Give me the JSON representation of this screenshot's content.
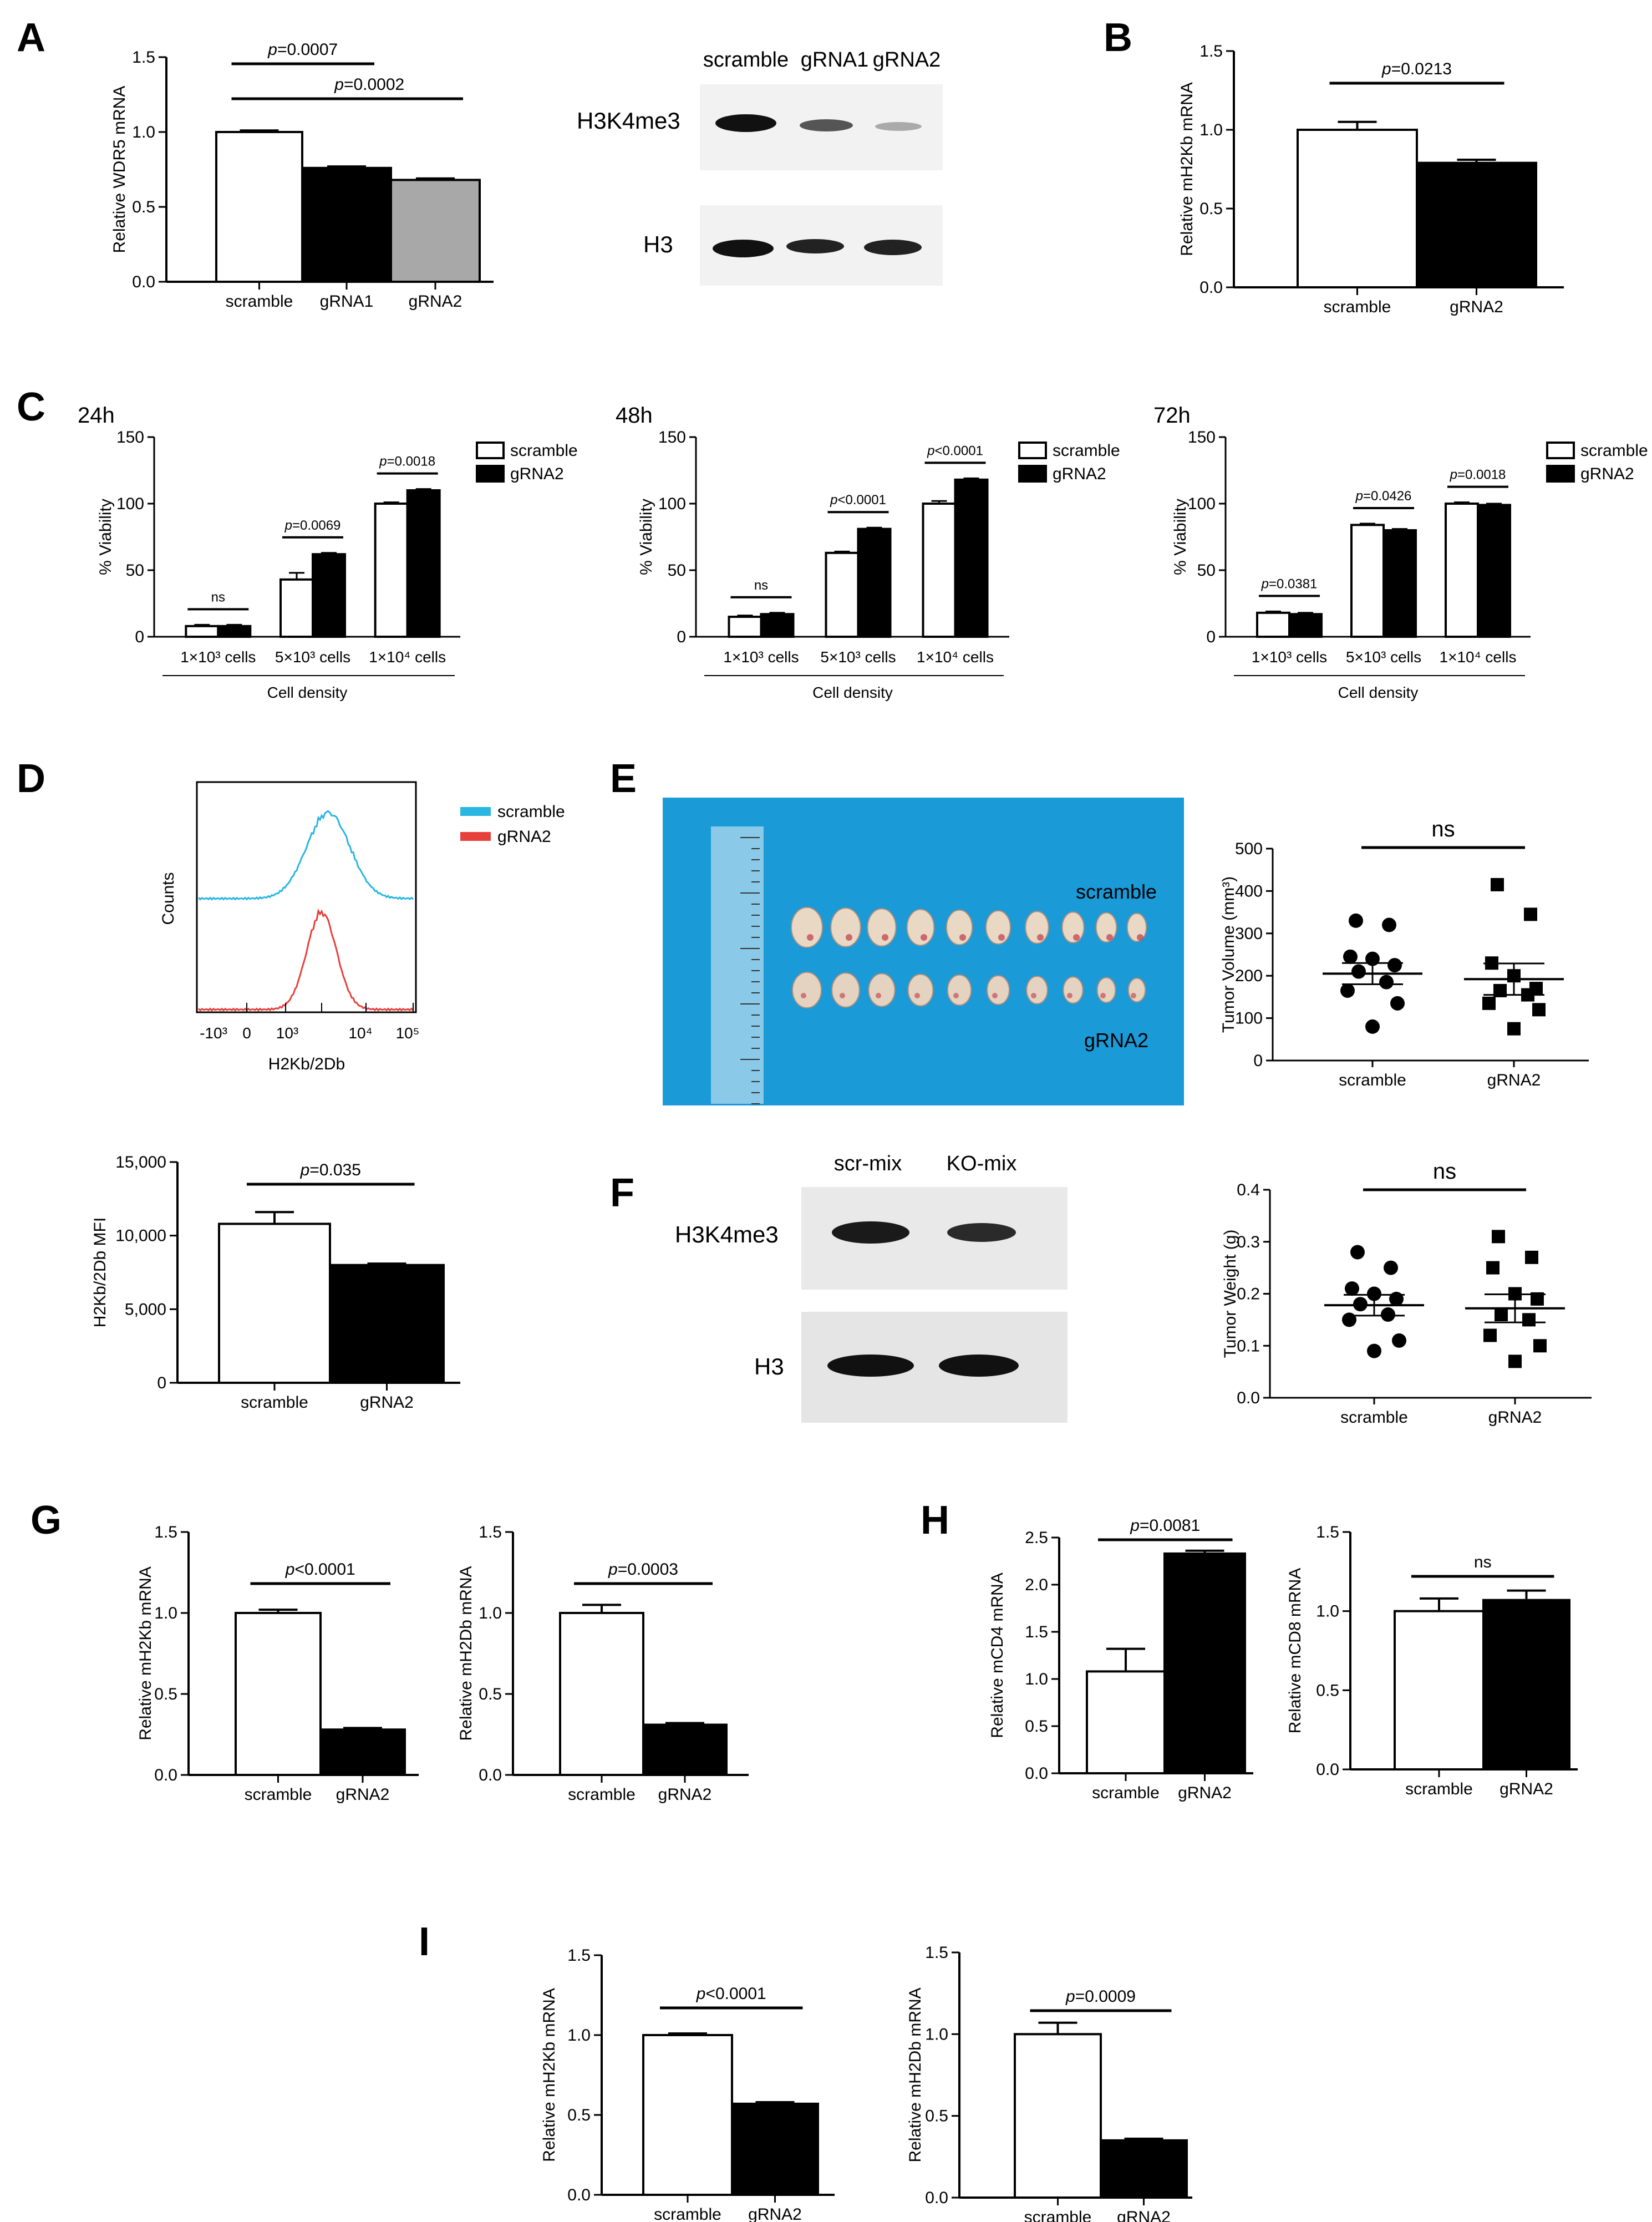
{
  "panel_labels": [
    "A",
    "B",
    "C",
    "D",
    "E",
    "F",
    "G",
    "H",
    "I"
  ],
  "western_A": {
    "lanes": [
      "scramble",
      "gRNA1",
      "gRNA2"
    ],
    "rows": [
      "H3K4me3",
      "H3"
    ]
  },
  "western_F": {
    "lanes": [
      "scr-mix",
      "KO-mix"
    ],
    "rows": [
      "H3K4me3",
      "H3"
    ]
  },
  "flow_D": {
    "legend": [
      "scramble",
      "gRNA2"
    ],
    "ylabel": "Counts",
    "xlabel": "H2Kb/2Db",
    "xticks": [
      "-10³",
      "0",
      "10³",
      "10⁴",
      "10⁵"
    ],
    "colors": [
      "#29b6e0",
      "#e8403c"
    ]
  },
  "photo_E": {
    "labels": [
      "scramble",
      "gRNA2"
    ],
    "background": "#1b9ad8"
  },
  "chart_data": [
    {
      "id": "A",
      "type": "bar",
      "categories": [
        "scramble",
        "gRNA1",
        "gRNA2"
      ],
      "values": [
        1.0,
        0.76,
        0.68
      ],
      "errors": [
        0.01,
        0.01,
        0.01
      ],
      "ylabel": "Relative WDR5 mRNA",
      "ylim": [
        0,
        1.5
      ],
      "ticks": [
        "0.0",
        "0.5",
        "1.0",
        "1.5"
      ],
      "fills": [
        "#ffffff",
        "#000000",
        "#a8a8a8"
      ],
      "sig": [
        {
          "text": "p=0.0007",
          "from": 0,
          "to": 1
        },
        {
          "text": "p=0.0002",
          "from": 0,
          "to": 2
        }
      ]
    },
    {
      "id": "B",
      "type": "bar",
      "categories": [
        "scramble",
        "gRNA2"
      ],
      "values": [
        1.0,
        0.79
      ],
      "errors": [
        0.05,
        0.02
      ],
      "ylabel": "Relative mH2Kb mRNA",
      "ylim": [
        0,
        1.5
      ],
      "ticks": [
        "0.0",
        "0.5",
        "1.0",
        "1.5"
      ],
      "fills": [
        "#ffffff",
        "#000000"
      ],
      "sig": [
        {
          "text": "p=0.0213",
          "from": 0,
          "to": 1
        }
      ]
    },
    {
      "id": "C-24h",
      "type": "bar",
      "title": "24h",
      "categories": [
        "1×10³ cells",
        "5×10³ cells",
        "1×10⁴ cells"
      ],
      "xlabel": "Cell density",
      "ylabel": "% Viability",
      "ylim": [
        0,
        150
      ],
      "ticks": [
        "0",
        "50",
        "100",
        "150"
      ],
      "series": [
        {
          "name": "scramble",
          "values": [
            8,
            43,
            100
          ],
          "errors": [
            1,
            5,
            1
          ]
        },
        {
          "name": "gRNA2",
          "values": [
            8,
            62,
            110
          ],
          "errors": [
            1,
            1,
            1
          ]
        }
      ],
      "sig": [
        "ns",
        "p=0.0069",
        "p=0.0018"
      ]
    },
    {
      "id": "C-48h",
      "type": "bar",
      "title": "48h",
      "categories": [
        "1×10³ cells",
        "5×10³ cells",
        "1×10⁴ cells"
      ],
      "xlabel": "Cell density",
      "ylabel": "% Viability",
      "ylim": [
        0,
        150
      ],
      "ticks": [
        "0",
        "50",
        "100",
        "150"
      ],
      "series": [
        {
          "name": "scramble",
          "values": [
            15,
            63,
            100
          ],
          "errors": [
            1,
            1,
            2
          ]
        },
        {
          "name": "gRNA2",
          "values": [
            17,
            81,
            118
          ],
          "errors": [
            1,
            1,
            1
          ]
        }
      ],
      "sig": [
        "ns",
        "p<0.0001",
        "p<0.0001"
      ]
    },
    {
      "id": "C-72h",
      "type": "bar",
      "title": "72h",
      "categories": [
        "1×10³ cells",
        "5×10³ cells",
        "1×10⁴ cells"
      ],
      "xlabel": "Cell density",
      "ylabel": "% Viability",
      "ylim": [
        0,
        150
      ],
      "ticks": [
        "0",
        "50",
        "100",
        "150"
      ],
      "series": [
        {
          "name": "scramble",
          "values": [
            18,
            84,
            100
          ],
          "errors": [
            1,
            1,
            1
          ]
        },
        {
          "name": "gRNA2",
          "values": [
            17,
            80,
            99
          ],
          "errors": [
            1,
            1,
            1
          ]
        }
      ],
      "sig": [
        "p=0.0381",
        "p=0.0426",
        "p=0.0018"
      ]
    },
    {
      "id": "D-MFI",
      "type": "bar",
      "categories": [
        "scramble",
        "gRNA2"
      ],
      "values": [
        10800,
        8000
      ],
      "errors": [
        800,
        100
      ],
      "ylabel": "H2Kb/2Db MFI",
      "ylim": [
        0,
        15000
      ],
      "ticks": [
        "0",
        "5,000",
        "10,000",
        "15,000"
      ],
      "fills": [
        "#ffffff",
        "#000000"
      ],
      "sig": [
        {
          "text": "p=0.035",
          "from": 0,
          "to": 1
        }
      ]
    },
    {
      "id": "E-volume",
      "type": "scatter",
      "categories": [
        "scramble",
        "gRNA2"
      ],
      "ylabel": "Tumor Volume (mm³)",
      "ylim": [
        0,
        500
      ],
      "ticks": [
        "0",
        "100",
        "200",
        "300",
        "400",
        "500"
      ],
      "sig_text": "ns",
      "series": [
        {
          "name": "scramble",
          "marker": "circle",
          "mean": 205,
          "sem": 25,
          "values": [
            330,
            320,
            245,
            240,
            225,
            210,
            185,
            165,
            135,
            80
          ]
        },
        {
          "name": "gRNA2",
          "marker": "square",
          "mean": 192,
          "sem": 37,
          "values": [
            415,
            345,
            230,
            200,
            170,
            165,
            155,
            135,
            120,
            75
          ]
        }
      ]
    },
    {
      "id": "F-weight",
      "type": "scatter",
      "categories": [
        "scramble",
        "gRNA2"
      ],
      "ylabel": "Tumor Weight (g)",
      "ylim": [
        0,
        0.4
      ],
      "ticks": [
        "0.0",
        "0.1",
        "0.2",
        "0.3",
        "0.4"
      ],
      "sig_text": "ns",
      "series": [
        {
          "name": "scramble",
          "marker": "circle",
          "mean": 0.178,
          "sem": 0.02,
          "values": [
            0.28,
            0.25,
            0.21,
            0.2,
            0.19,
            0.18,
            0.16,
            0.15,
            0.11,
            0.09
          ]
        },
        {
          "name": "gRNA2",
          "marker": "square",
          "mean": 0.172,
          "sem": 0.027,
          "values": [
            0.31,
            0.27,
            0.25,
            0.2,
            0.19,
            0.16,
            0.15,
            0.12,
            0.1,
            0.07
          ]
        }
      ]
    },
    {
      "id": "G1",
      "type": "bar",
      "categories": [
        "scramble",
        "gRNA2"
      ],
      "values": [
        1.0,
        0.28
      ],
      "errors": [
        0.02,
        0.01
      ],
      "ylabel": "Relative mH2Kb mRNA",
      "ylim": [
        0,
        1.5
      ],
      "ticks": [
        "0.0",
        "0.5",
        "1.0",
        "1.5"
      ],
      "fills": [
        "#ffffff",
        "#000000"
      ],
      "sig": [
        {
          "text": "p<0.0001",
          "from": 0,
          "to": 1
        }
      ]
    },
    {
      "id": "G2",
      "type": "bar",
      "categories": [
        "scramble",
        "gRNA2"
      ],
      "values": [
        1.0,
        0.31
      ],
      "errors": [
        0.05,
        0.01
      ],
      "ylabel": "Relative mH2Db mRNA",
      "ylim": [
        0,
        1.5
      ],
      "ticks": [
        "0.0",
        "0.5",
        "1.0",
        "1.5"
      ],
      "fills": [
        "#ffffff",
        "#000000"
      ],
      "sig": [
        {
          "text": "p=0.0003",
          "from": 0,
          "to": 1
        }
      ]
    },
    {
      "id": "H1",
      "type": "bar",
      "categories": [
        "scramble",
        "gRNA2"
      ],
      "values": [
        1.08,
        2.33
      ],
      "errors": [
        0.24,
        0.03
      ],
      "ylabel": "Relative mCD4 mRNA",
      "ylim": [
        0,
        2.5
      ],
      "ticks": [
        "0.0",
        "0.5",
        "1.0",
        "1.5",
        "2.0",
        "2.5"
      ],
      "fills": [
        "#ffffff",
        "#000000"
      ],
      "sig": [
        {
          "text": "p=0.0081",
          "from": 0,
          "to": 1
        }
      ]
    },
    {
      "id": "H2",
      "type": "bar",
      "categories": [
        "scramble",
        "gRNA2"
      ],
      "values": [
        1.0,
        1.07
      ],
      "errors": [
        0.08,
        0.06
      ],
      "ylabel": "Relative mCD8 mRNA",
      "ylim": [
        0,
        1.5
      ],
      "ticks": [
        "0.0",
        "0.5",
        "1.0",
        "1.5"
      ],
      "fills": [
        "#ffffff",
        "#000000"
      ],
      "sig": [
        {
          "text": "ns",
          "from": 0,
          "to": 1
        }
      ]
    },
    {
      "id": "I1",
      "type": "bar",
      "categories": [
        "scramble",
        "gRNA2"
      ],
      "values": [
        1.0,
        0.57
      ],
      "errors": [
        0.01,
        0.01
      ],
      "ylabel": "Relative mH2Kb mRNA",
      "ylim": [
        0,
        1.5
      ],
      "ticks": [
        "0.0",
        "0.5",
        "1.0",
        "1.5"
      ],
      "fills": [
        "#ffffff",
        "#000000"
      ],
      "sig": [
        {
          "text": "p<0.0001",
          "from": 0,
          "to": 1
        }
      ]
    },
    {
      "id": "I2",
      "type": "bar",
      "categories": [
        "scramble",
        "gRNA2"
      ],
      "values": [
        1.0,
        0.35
      ],
      "errors": [
        0.07,
        0.01
      ],
      "ylabel": "Relative mH2Db mRNA",
      "ylim": [
        0,
        1.5
      ],
      "ticks": [
        "0.0",
        "0.5",
        "1.0",
        "1.5"
      ],
      "fills": [
        "#ffffff",
        "#000000"
      ],
      "sig": [
        {
          "text": "p=0.0009",
          "from": 0,
          "to": 1
        }
      ]
    }
  ]
}
